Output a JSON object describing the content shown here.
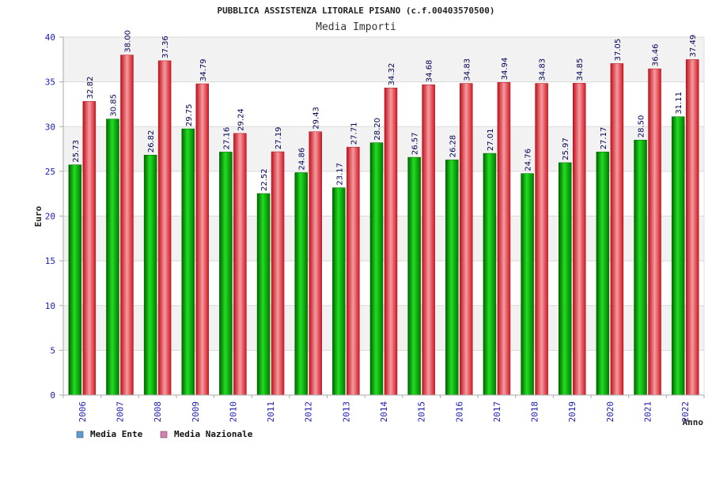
{
  "chart_data": {
    "type": "bar",
    "title": "PUBBLICA ASSISTENZA LITORALE PISANO (c.f.00403570500)",
    "subtitle": "Media Importi",
    "xlabel": "Anno",
    "ylabel": "Euro",
    "ylim": [
      0,
      40
    ],
    "yticks": [
      "0",
      "5",
      "10",
      "15",
      "20",
      "25",
      "30",
      "35",
      "40"
    ],
    "grid": true,
    "legend_position": "bottom-left",
    "categories": [
      "2006",
      "2007",
      "2008",
      "2009",
      "2010",
      "2011",
      "2012",
      "2013",
      "2014",
      "2015",
      "2016",
      "2017",
      "2018",
      "2019",
      "2020",
      "2021",
      "2022"
    ],
    "series": [
      {
        "name": "Media Ente",
        "color": "#00b000",
        "legend_color": "#5b9bd5",
        "values": [
          25.73,
          30.85,
          26.82,
          29.75,
          27.16,
          22.52,
          24.86,
          23.17,
          28.2,
          26.57,
          26.28,
          27.01,
          24.76,
          25.97,
          27.17,
          28.5,
          31.11
        ],
        "labels": [
          "25.73",
          "30.85",
          "26.82",
          "29.75",
          "27.16",
          "22.52",
          "24.86",
          "23.17",
          "28.20",
          "26.57",
          "26.28",
          "27.01",
          "24.76",
          "25.97",
          "27.17",
          "28.50",
          "31.11"
        ]
      },
      {
        "name": "Media Nazionale",
        "color": "#e8202a",
        "legend_color": "#d97fb0",
        "values": [
          32.82,
          38.0,
          37.36,
          34.79,
          29.24,
          27.19,
          29.43,
          27.71,
          34.32,
          34.68,
          34.83,
          34.94,
          34.83,
          34.85,
          37.05,
          36.46,
          37.49
        ],
        "labels": [
          "32.82",
          "38.00",
          "37.36",
          "34.79",
          "29.24",
          "27.19",
          "29.43",
          "27.71",
          "34.32",
          "34.68",
          "34.83",
          "34.94",
          "34.83",
          "34.85",
          "37.05",
          "36.46",
          "37.49"
        ]
      }
    ]
  }
}
